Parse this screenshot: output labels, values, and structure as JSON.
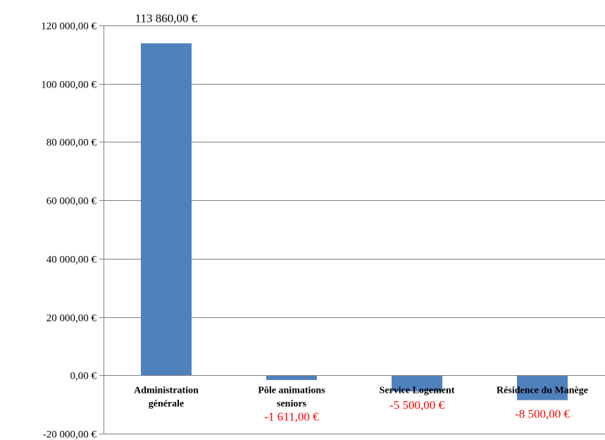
{
  "chart_data": {
    "type": "bar",
    "title": "",
    "xlabel": "",
    "ylabel": "",
    "categories": [
      [
        "Administration",
        "générale"
      ],
      [
        "Pôle animations",
        "seniors"
      ],
      [
        "Service Logement"
      ],
      [
        "Résidence du Manège"
      ]
    ],
    "values": [
      113860,
      -1611,
      -5500,
      -8500
    ],
    "data_labels": [
      "113 860,00 €",
      "-1 611,00 €",
      "-5 500,00 €",
      "-8 500,00 €"
    ],
    "ylim": [
      -20000,
      120000
    ],
    "y_ticks": [
      -20000,
      0,
      20000,
      40000,
      60000,
      80000,
      100000,
      120000
    ],
    "y_tick_labels": [
      "-20 000,00 €",
      "0,00 €",
      "20 000,00 €",
      "40 000,00 €",
      "60 000,00 €",
      "80 000,00 €",
      "100 000,00 €",
      "120 000,00 €"
    ],
    "grid": true,
    "legend": "none",
    "colors": {
      "bar": "#4F81BD",
      "positive_label": "#000000",
      "negative_label": "#FF0000",
      "grid": "#808080"
    }
  }
}
